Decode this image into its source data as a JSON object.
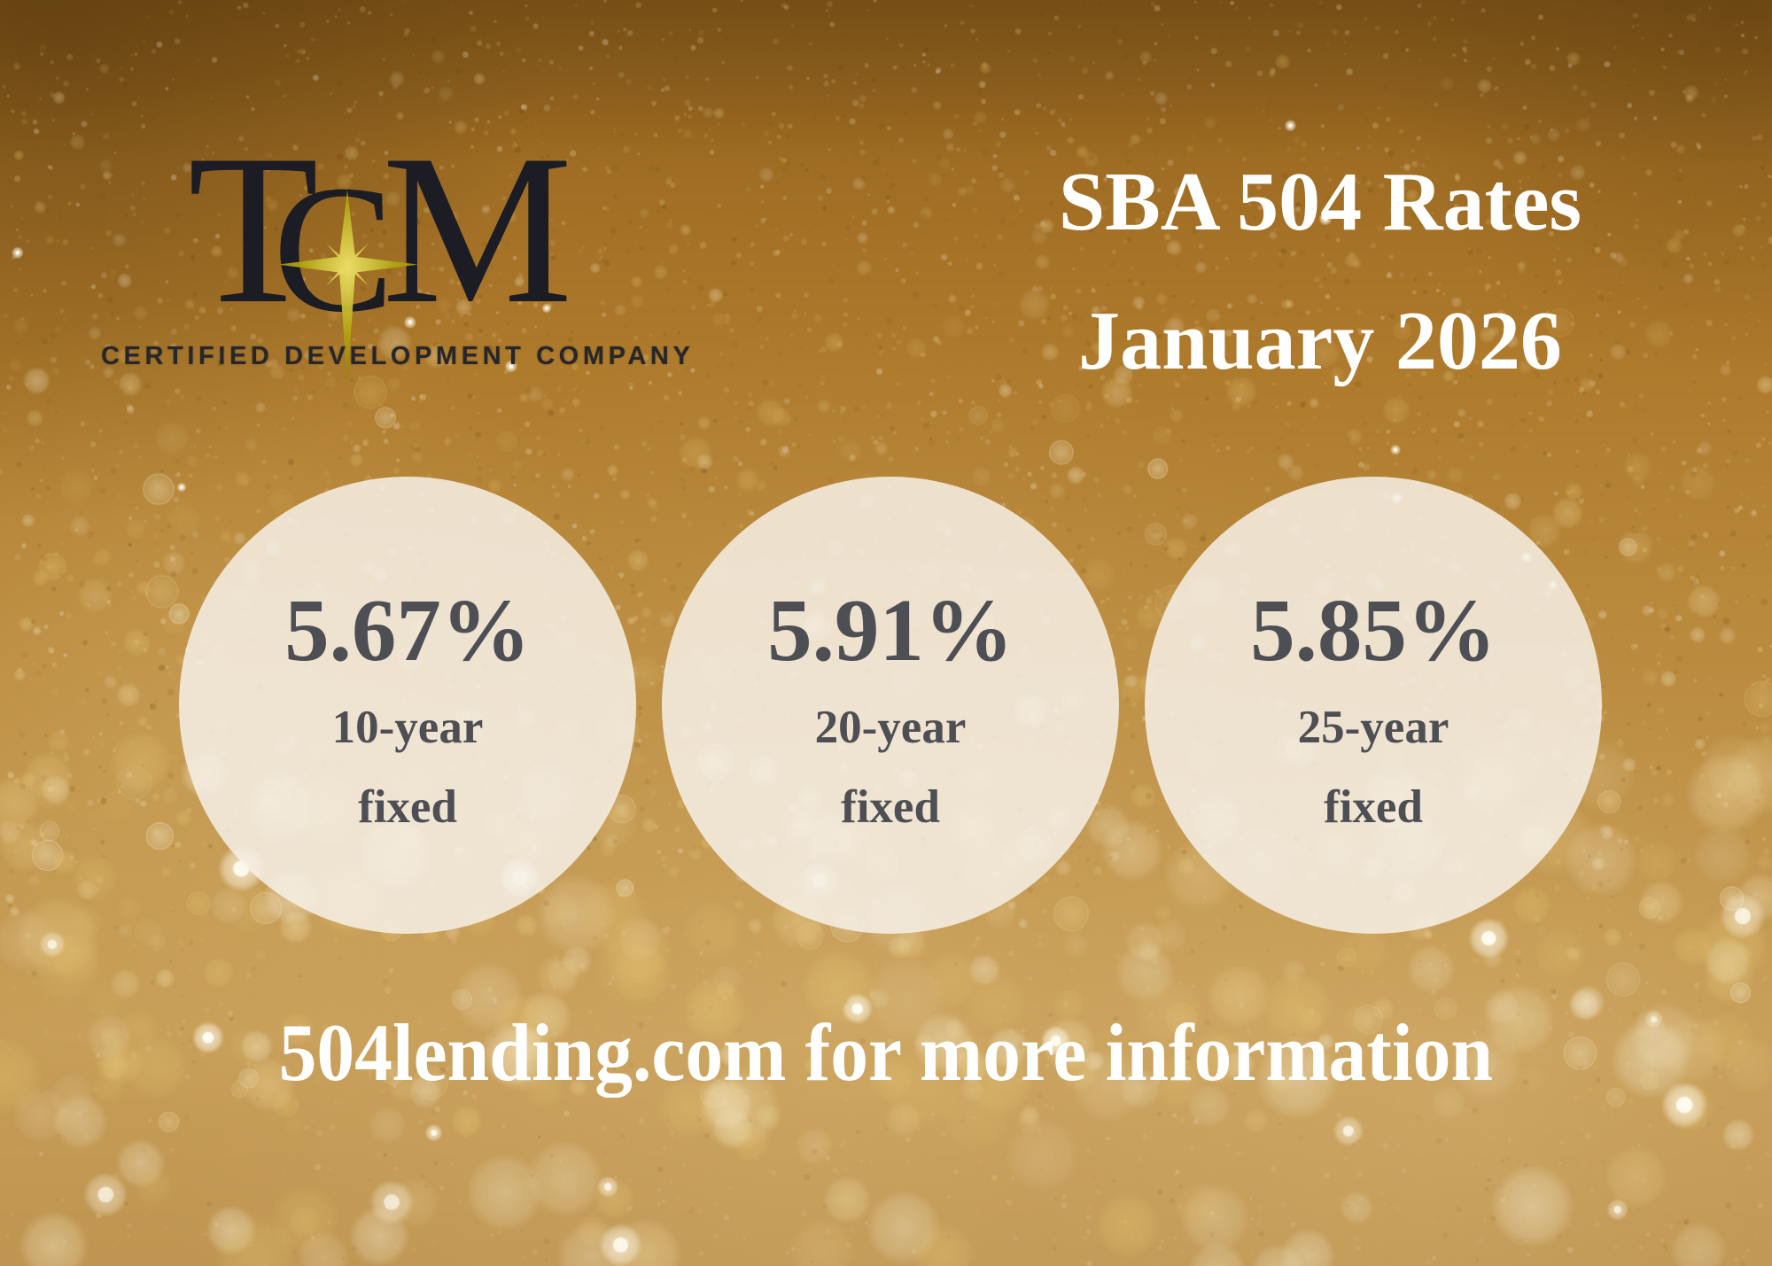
{
  "brand": {
    "logo_t": "T",
    "logo_c": "C",
    "logo_m": "M",
    "star_icon": "four-point-star-icon",
    "tagline": "CERTIFIED DEVELOPMENT COMPANY"
  },
  "header": {
    "title_line1": "SBA 504 Rates",
    "title_line2": "January 2026"
  },
  "rates": [
    {
      "value": "5.67%",
      "term": "10-year",
      "kind": "fixed"
    },
    {
      "value": "5.91%",
      "term": "20-year",
      "kind": "fixed"
    },
    {
      "value": "5.85%",
      "term": "25-year",
      "kind": "fixed"
    }
  ],
  "footer": {
    "message": "504lending.com for more information"
  },
  "colors": {
    "logo_ink": "#1c1c24",
    "star_gold": "#b3a315",
    "title_white": "#ffffff",
    "rate_ink": "#4e4f54",
    "circle_fill": "rgba(246,240,231,0.86)"
  }
}
